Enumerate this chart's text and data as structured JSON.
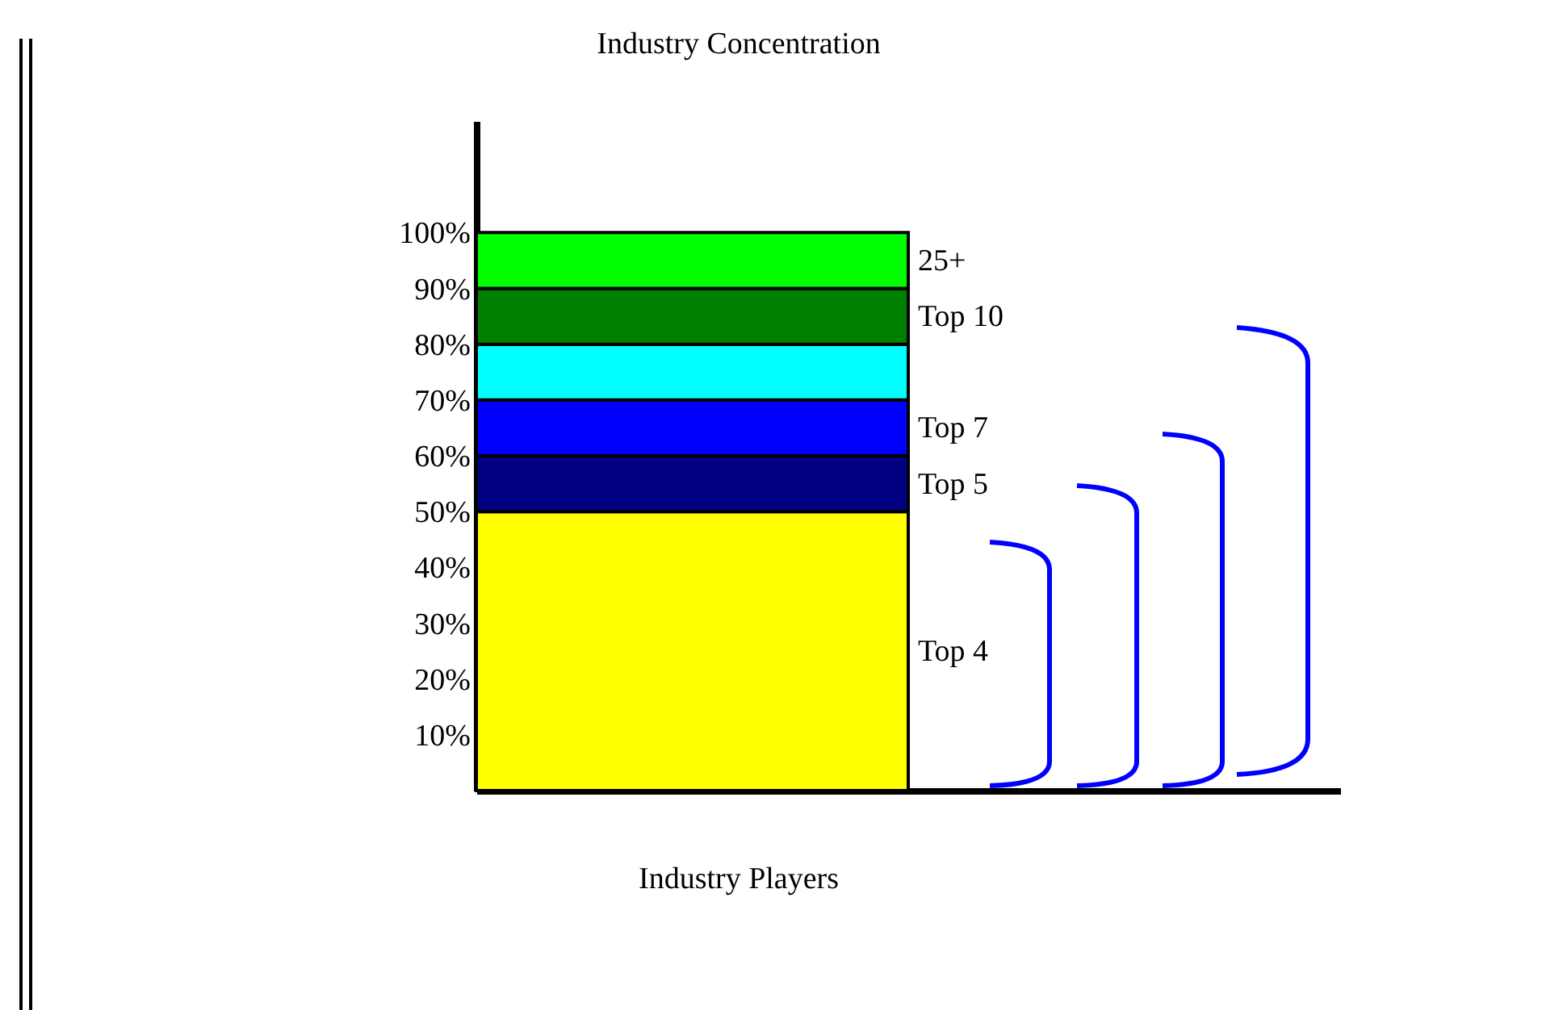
{
  "chart_data": {
    "type": "bar",
    "title": "Industry Concentration",
    "xlabel": "Industry Players",
    "categories": [
      null
    ],
    "stacked": true,
    "legend": false,
    "grid": false,
    "tick_labels": "y",
    "ylim": [
      0,
      1.2
    ],
    "yticks": [
      {
        "value": 0.1,
        "label": "10%"
      },
      {
        "value": 0.2,
        "label": "20%"
      },
      {
        "value": 0.3,
        "label": "30%"
      },
      {
        "value": 0.4,
        "label": "40%"
      },
      {
        "value": 0.5,
        "label": "50%"
      },
      {
        "value": 0.6,
        "label": "60%"
      },
      {
        "value": 0.7,
        "label": "70%"
      },
      {
        "value": 0.8,
        "label": "80%"
      },
      {
        "value": 0.9,
        "label": "90%"
      },
      {
        "value": 1,
        "label": "100%"
      }
    ],
    "series": [
      {
        "name": "Top 4",
        "color": "#ffff00",
        "values": [
          0.5
        ]
      },
      {
        "name": "Top 5",
        "color": "#000080",
        "values": [
          0.1
        ]
      },
      {
        "name": "Top 7",
        "color": "#0000ff",
        "values": [
          0.1
        ]
      },
      {
        "color": "#00ffff",
        "values": [
          0.1
        ]
      },
      {
        "name": "Top 10",
        "color": "#008000",
        "values": [
          0.1
        ]
      },
      {
        "name": "25+",
        "color": "#00ff00",
        "values": [
          0.1
        ]
      }
    ]
  }
}
